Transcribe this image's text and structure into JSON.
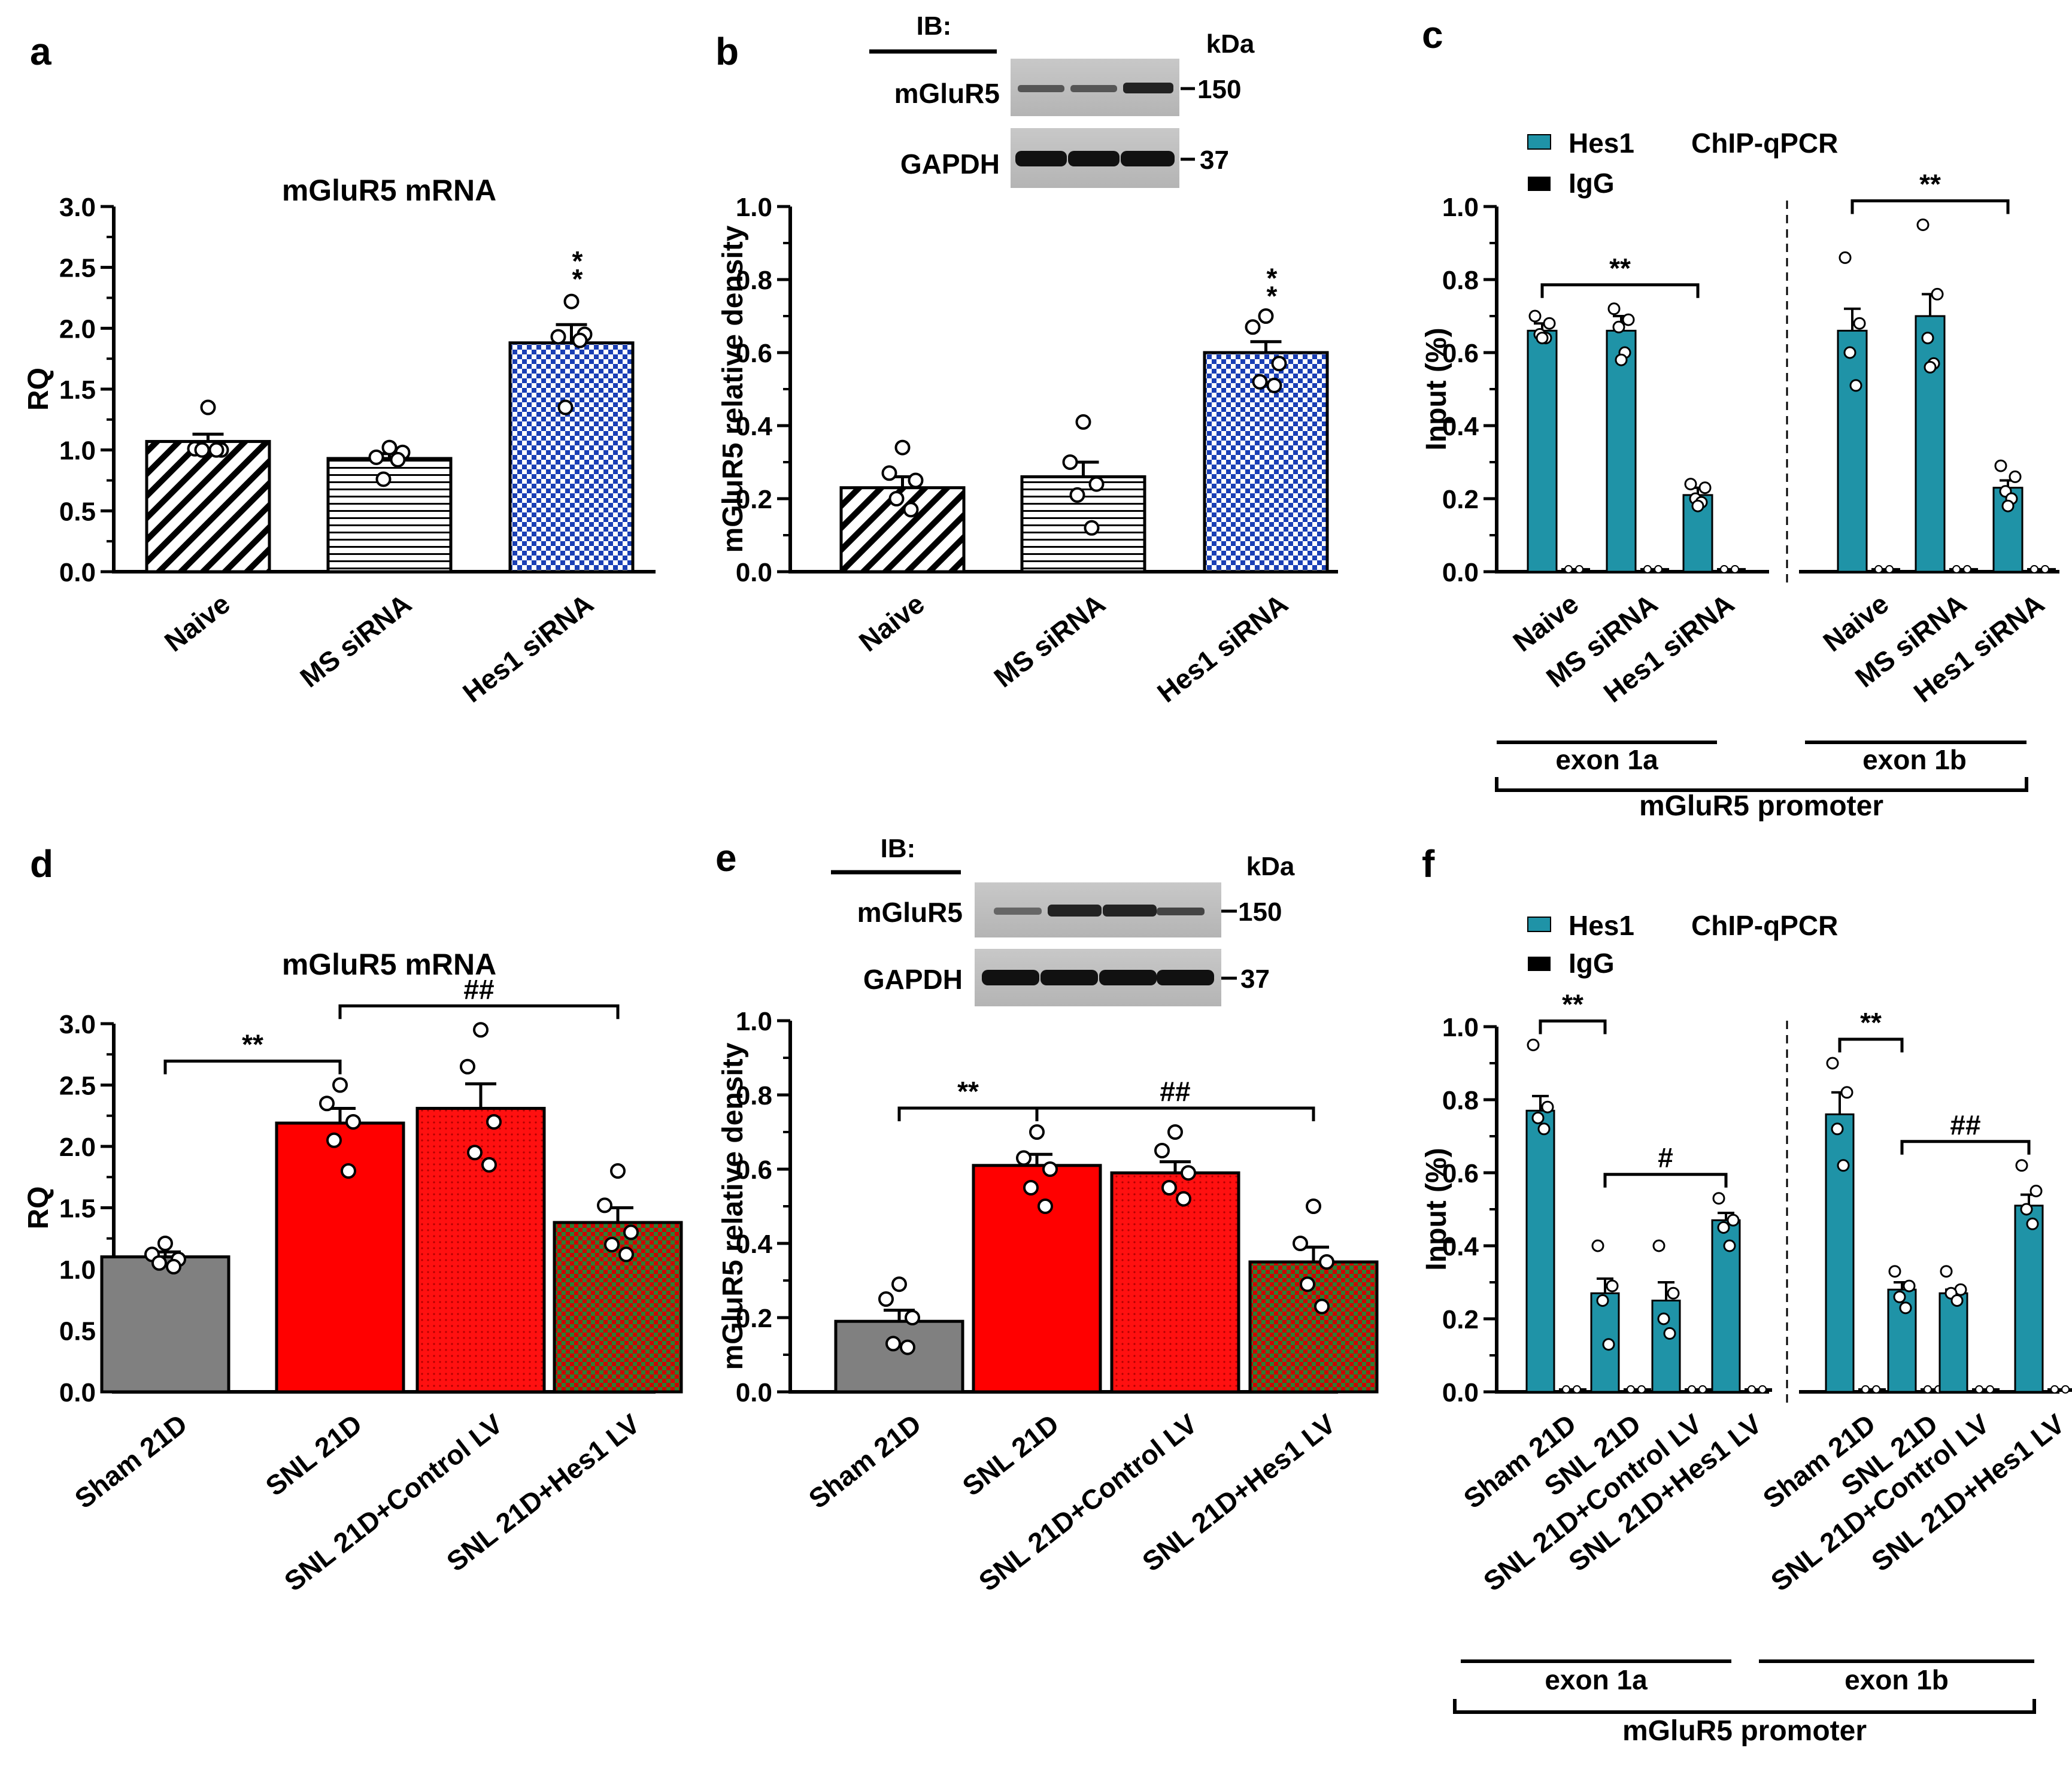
{
  "colors": {
    "naive_pattern": "#000000",
    "ms_pattern": "#000000",
    "hes1_sirna": "#1a3fb5",
    "sham": "#808080",
    "snl": "#ff0000",
    "snl_control": "#e00000",
    "snl_hes1_green": "#2e7d32",
    "snl_hes1_red": "#d00000",
    "chip_hes1": "#1f93a7",
    "chip_igg": "#000000"
  },
  "panels": {
    "a": {
      "letter": "a"
    },
    "b": {
      "letter": "b",
      "blot": {
        "ib_label": "IB:",
        "kda_label": "kDa",
        "row1_label": "mGluR5",
        "row1_kda": "150",
        "row2_label": "GAPDH",
        "row2_kda": "37"
      }
    },
    "c": {
      "letter": "c",
      "legend_hes1": "Hes1",
      "legend_igg": "IgG",
      "method": "ChIP-qPCR",
      "group1": "exon 1a",
      "group2": "exon 1b",
      "promoter": "mGluR5 promoter"
    },
    "d": {
      "letter": "d"
    },
    "e": {
      "letter": "e",
      "blot": {
        "ib_label": "IB:",
        "kda_label": "kDa",
        "row1_label": "mGluR5",
        "row1_kda": "150",
        "row2_label": "GAPDH",
        "row2_kda": "37"
      }
    },
    "f": {
      "letter": "f",
      "legend_hes1": "Hes1",
      "legend_igg": "IgG",
      "method": "ChIP-qPCR",
      "group1": "exon 1a",
      "group2": "exon 1b",
      "promoter": "mGluR5 promoter"
    }
  },
  "chart_data": [
    {
      "panel": "a",
      "type": "bar",
      "title": "mGluR5 mRNA",
      "ylabel": "RQ",
      "ylim": [
        0,
        3.0
      ],
      "yticks": [
        "0.0",
        "0.5",
        "1.0",
        "1.5",
        "2.0",
        "2.5",
        "3.0"
      ],
      "categories": [
        "Naive",
        "MS siRNA",
        "Hes1 siRNA"
      ],
      "values": [
        1.07,
        0.93,
        1.88
      ],
      "errors": [
        0.06,
        0.04,
        0.15
      ],
      "points": [
        [
          1.35,
          1.01,
          1.0,
          1.0,
          1.0
        ],
        [
          1.02,
          0.94,
          0.98,
          0.76,
          0.92
        ],
        [
          2.22,
          1.93,
          1.95,
          1.35,
          1.9
        ]
      ],
      "annotations": [
        {
          "text": "**",
          "index": 2
        }
      ]
    },
    {
      "panel": "b",
      "type": "bar",
      "title": "",
      "ylabel": "mGluR5 relative density",
      "ylim": [
        0,
        1.0
      ],
      "yticks": [
        "0.0",
        "0.2",
        "0.4",
        "0.6",
        "0.8",
        "1.0"
      ],
      "categories": [
        "Naive",
        "MS siRNA",
        "Hes1 siRNA"
      ],
      "values": [
        0.23,
        0.26,
        0.6
      ],
      "errors": [
        0.03,
        0.04,
        0.03
      ],
      "points": [
        [
          0.34,
          0.27,
          0.25,
          0.2,
          0.17
        ],
        [
          0.41,
          0.3,
          0.24,
          0.21,
          0.12
        ],
        [
          0.7,
          0.67,
          0.57,
          0.52,
          0.51
        ]
      ],
      "annotations": [
        {
          "text": "**",
          "index": 2
        }
      ]
    },
    {
      "panel": "c",
      "type": "bar",
      "title": "",
      "ylabel": "Input (%)",
      "ylim": [
        0,
        1.0
      ],
      "yticks": [
        "0.0",
        "0.2",
        "0.4",
        "0.6",
        "0.8",
        "1.0"
      ],
      "categories": [
        "Naive",
        "MS siRNA",
        "Hes1 siRNA",
        "Naive",
        "MS siRNA",
        "Hes1 siRNA"
      ],
      "series": [
        {
          "name": "Hes1",
          "values": [
            0.66,
            0.66,
            0.21,
            0.66,
            0.7,
            0.23
          ],
          "errors": [
            0.02,
            0.04,
            0.02,
            0.06,
            0.06,
            0.02
          ],
          "points": [
            [
              0.7,
              0.68,
              0.65,
              0.64,
              0.64
            ],
            [
              0.72,
              0.69,
              0.67,
              0.6,
              0.58
            ],
            [
              0.24,
              0.23,
              0.2,
              0.19,
              0.18
            ],
            [
              0.86,
              0.68,
              0.6,
              0.51
            ],
            [
              0.95,
              0.76,
              0.64,
              0.57,
              0.56
            ],
            [
              0.29,
              0.26,
              0.22,
              0.2,
              0.18
            ]
          ]
        },
        {
          "name": "IgG",
          "values": [
            0.01,
            0.01,
            0.01,
            0.01,
            0.01,
            0.01
          ],
          "errors": [
            0,
            0,
            0,
            0,
            0,
            0
          ]
        }
      ],
      "brackets": [
        {
          "from": 0,
          "to": 2,
          "text": "**"
        },
        {
          "from": 3,
          "to": 5,
          "text": "**"
        }
      ]
    },
    {
      "panel": "d",
      "type": "bar",
      "title": "mGluR5 mRNA",
      "ylabel": "RQ",
      "ylim": [
        0,
        3.0
      ],
      "yticks": [
        "0.0",
        "0.5",
        "1.0",
        "1.5",
        "2.0",
        "2.5",
        "3.0"
      ],
      "categories": [
        "Sham 21D",
        "SNL 21D",
        "SNL 21D+Control LV",
        "SNL 21D+Hes1 LV"
      ],
      "values": [
        1.1,
        2.19,
        2.31,
        1.38
      ],
      "errors": [
        0.04,
        0.12,
        0.2,
        0.12
      ],
      "points": [
        [
          1.21,
          1.12,
          1.08,
          1.05,
          1.02
        ],
        [
          2.5,
          2.35,
          2.2,
          2.05,
          1.8
        ],
        [
          2.95,
          2.65,
          2.2,
          1.95,
          1.85
        ],
        [
          1.8,
          1.52,
          1.3,
          1.2,
          1.12
        ]
      ],
      "brackets": [
        {
          "from": 0,
          "to": 1,
          "text": "**"
        },
        {
          "from": 1,
          "to": 3,
          "text": "##"
        }
      ]
    },
    {
      "panel": "e",
      "type": "bar",
      "title": "",
      "ylabel": "mGluR5 relative density",
      "ylim": [
        0,
        1.0
      ],
      "yticks": [
        "0.0",
        "0.2",
        "0.4",
        "0.6",
        "0.8",
        "1.0"
      ],
      "categories": [
        "Sham 21D",
        "SNL 21D",
        "SNL 21D+Control LV",
        "SNL 21D+Hes1 LV"
      ],
      "values": [
        0.19,
        0.61,
        0.59,
        0.35
      ],
      "errors": [
        0.03,
        0.03,
        0.03,
        0.04
      ],
      "points": [
        [
          0.29,
          0.25,
          0.2,
          0.13,
          0.12
        ],
        [
          0.7,
          0.63,
          0.6,
          0.55,
          0.5
        ],
        [
          0.7,
          0.65,
          0.59,
          0.55,
          0.52
        ],
        [
          0.5,
          0.4,
          0.35,
          0.29,
          0.23
        ]
      ],
      "brackets": [
        {
          "from": 0,
          "to": 1,
          "text": "**"
        },
        {
          "from": 1,
          "to": 3,
          "text": "##"
        }
      ]
    },
    {
      "panel": "f",
      "type": "bar",
      "title": "",
      "ylabel": "Input (%)",
      "ylim": [
        0,
        1.0
      ],
      "yticks": [
        "0.0",
        "0.2",
        "0.4",
        "0.6",
        "0.8",
        "1.0"
      ],
      "categories": [
        "Sham  21D",
        "SNL 21D",
        "SNL 21D+Control LV",
        "SNL 21D+Hes1 LV",
        "Sham  21D",
        "SNL 21D",
        "SNL 21D+Control LV",
        "SNL 21D+Hes1 LV"
      ],
      "series": [
        {
          "name": "Hes1",
          "values": [
            0.77,
            0.27,
            0.25,
            0.47,
            0.76,
            0.28,
            0.27,
            0.51
          ],
          "errors": [
            0.04,
            0.04,
            0.05,
            0.02,
            0.06,
            0.02,
            0.01,
            0.03
          ],
          "points": [
            [
              0.95,
              0.78,
              0.75,
              0.72
            ],
            [
              0.4,
              0.29,
              0.25,
              0.13
            ],
            [
              0.4,
              0.27,
              0.2,
              0.16
            ],
            [
              0.53,
              0.47,
              0.45,
              0.4
            ],
            [
              0.9,
              0.82,
              0.72,
              0.62
            ],
            [
              0.33,
              0.29,
              0.26,
              0.23
            ],
            [
              0.33,
              0.28,
              0.27,
              0.25
            ],
            [
              0.62,
              0.55,
              0.5,
              0.46
            ]
          ]
        },
        {
          "name": "IgG",
          "values": [
            0.01,
            0.01,
            0.01,
            0.01,
            0.01,
            0.01,
            0.01,
            0.01
          ],
          "errors": [
            0,
            0,
            0,
            0,
            0,
            0,
            0,
            0
          ]
        }
      ],
      "brackets": [
        {
          "from": 0,
          "to": 1,
          "text": "**"
        },
        {
          "from": 1,
          "to": 3,
          "text": "#"
        },
        {
          "from": 4,
          "to": 5,
          "text": "**"
        },
        {
          "from": 5,
          "to": 7,
          "text": "##"
        }
      ]
    }
  ]
}
